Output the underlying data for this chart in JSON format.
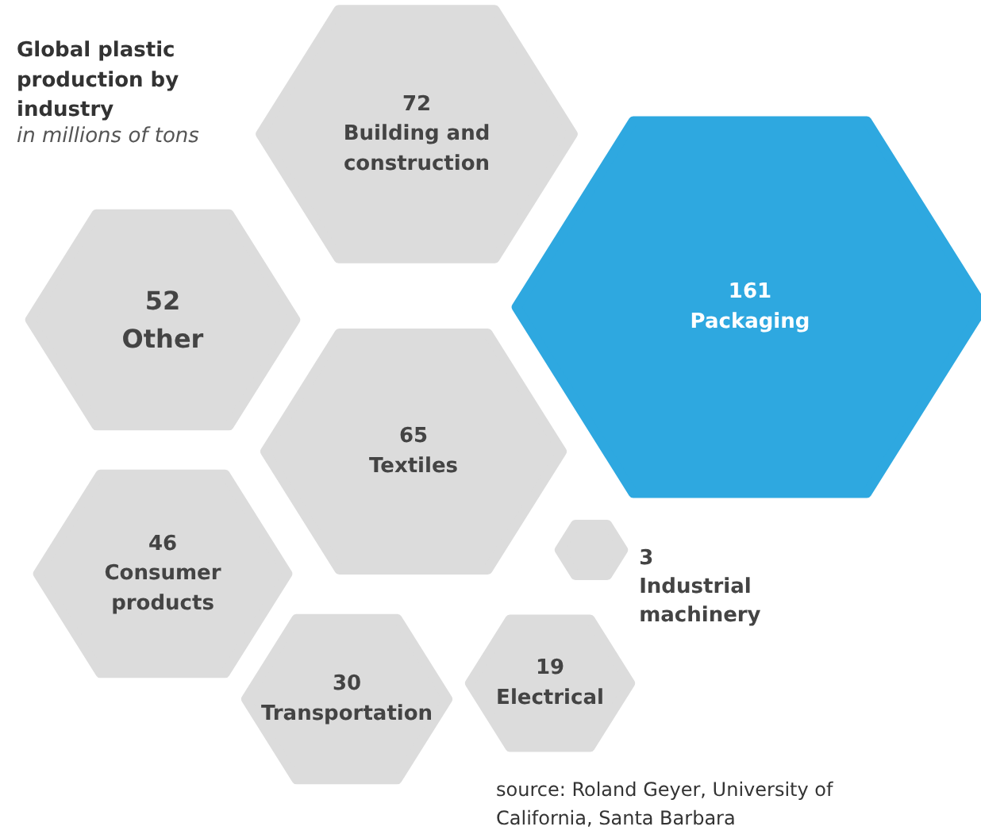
{
  "chart_data": {
    "type": "other",
    "title": "Global plastic production by industry",
    "subtitle": "in millions of tons",
    "categories": [
      "Building and construction",
      "Other",
      "Packaging",
      "Textiles",
      "Consumer products",
      "Industrial machinery",
      "Transportation",
      "Electrical"
    ],
    "values": [
      72,
      52,
      161,
      65,
      46,
      3,
      30,
      19
    ],
    "colors": [
      "#dcdcdc",
      "#dcdcdc",
      "#2ea8e0",
      "#dcdcdc",
      "#dcdcdc",
      "#dcdcdc",
      "#dcdcdc",
      "#dcdcdc"
    ],
    "data_labels": true,
    "annotations": [
      "source: Roland Geyer, University of California, Santa Barbara"
    ]
  }
}
